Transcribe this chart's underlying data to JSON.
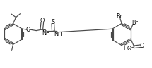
{
  "line_color": "#4a4a4a",
  "line_width": 0.85,
  "font_size": 5.2,
  "font_size_large": 5.8,
  "xlim": [
    0,
    2.15
  ],
  "ylim": [
    0,
    0.97
  ]
}
